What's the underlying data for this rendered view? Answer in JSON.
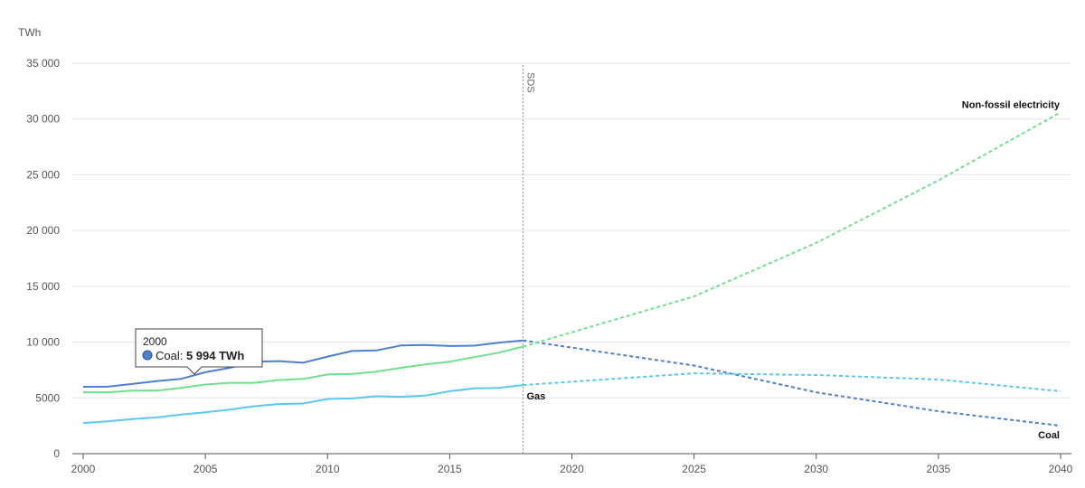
{
  "chart_data": {
    "type": "line",
    "unit_label": "TWh",
    "x_range": [
      2000,
      2040
    ],
    "ylim": [
      0,
      35000
    ],
    "x_ticks": [
      2000,
      2005,
      2010,
      2015,
      2020,
      2025,
      2030,
      2035,
      2040
    ],
    "y_ticks": [
      0,
      5000,
      10000,
      15000,
      20000,
      25000,
      30000,
      35000
    ],
    "y_tick_labels": [
      "0",
      "5000",
      "10 000",
      "15 000",
      "20 000",
      "25 000",
      "30 000",
      "35 000"
    ],
    "grid": "horizontal",
    "reference_line": {
      "x": 2018,
      "label": "SDS"
    },
    "series": [
      {
        "name": "Coal",
        "color": "#4f7fd0",
        "historical": {
          "x": [
            2000,
            2001,
            2002,
            2003,
            2004,
            2005,
            2006,
            2007,
            2008,
            2009,
            2010,
            2011,
            2012,
            2013,
            2014,
            2015,
            2016,
            2017,
            2018
          ],
          "y": [
            5994,
            6000,
            6250,
            6500,
            6700,
            7300,
            7700,
            8250,
            8300,
            8150,
            8700,
            9200,
            9250,
            9700,
            9750,
            9650,
            9680,
            9950,
            10150
          ]
        },
        "projection": {
          "x": [
            2018,
            2025,
            2030,
            2035,
            2040
          ],
          "y": [
            10150,
            7900,
            5500,
            3800,
            2500
          ]
        }
      },
      {
        "name": "Gas",
        "color": "#5bc8f2",
        "historical": {
          "x": [
            2000,
            2001,
            2002,
            2003,
            2004,
            2005,
            2006,
            2007,
            2008,
            2009,
            2010,
            2011,
            2012,
            2013,
            2014,
            2015,
            2016,
            2017,
            2018
          ],
          "y": [
            2750,
            2900,
            3100,
            3250,
            3500,
            3700,
            3950,
            4250,
            4450,
            4500,
            4900,
            4950,
            5150,
            5100,
            5200,
            5600,
            5850,
            5900,
            6150
          ]
        },
        "projection": {
          "x": [
            2018,
            2025,
            2030,
            2035,
            2040
          ],
          "y": [
            6150,
            7200,
            7050,
            6650,
            5600
          ]
        }
      },
      {
        "name": "Non-fossil electricity",
        "color": "#6fe08d",
        "historical": {
          "x": [
            2000,
            2001,
            2002,
            2003,
            2004,
            2005,
            2006,
            2007,
            2008,
            2009,
            2010,
            2011,
            2012,
            2013,
            2014,
            2015,
            2016,
            2017,
            2018
          ],
          "y": [
            5500,
            5500,
            5650,
            5650,
            5900,
            6200,
            6350,
            6350,
            6600,
            6700,
            7100,
            7150,
            7350,
            7700,
            8000,
            8250,
            8650,
            9050,
            9600
          ]
        },
        "projection": {
          "x": [
            2018,
            2025,
            2030,
            2035,
            2040
          ],
          "y": [
            9600,
            14100,
            18900,
            24500,
            30600
          ]
        }
      }
    ],
    "tooltip": {
      "year": "2000",
      "series": "Coal",
      "value_text": "5 994 TWh"
    }
  }
}
